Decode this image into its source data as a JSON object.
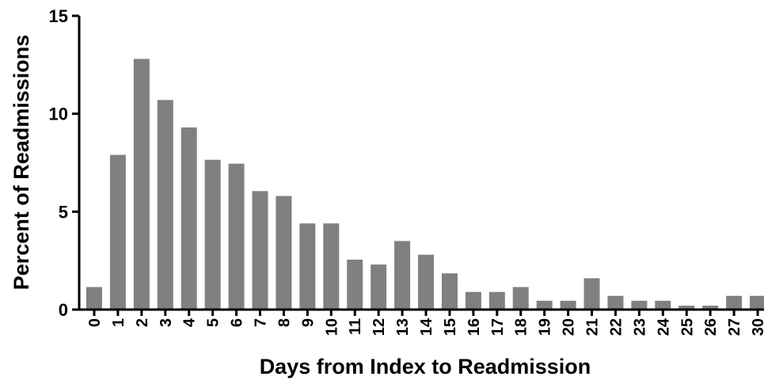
{
  "chart_data": {
    "type": "bar",
    "title": "",
    "xlabel": "Days from Index to Readmission",
    "ylabel": "Percent of Readmissions",
    "ylim": [
      0,
      15
    ],
    "yticks": [
      "0",
      "5",
      "10",
      "15"
    ],
    "grid": false,
    "legend": "none",
    "bar_color": "#808080",
    "categories": [
      "0",
      "1",
      "2",
      "3",
      "4",
      "5",
      "6",
      "7",
      "8",
      "9",
      "10",
      "11",
      "12",
      "13",
      "14",
      "15",
      "16",
      "17",
      "18",
      "19",
      "20",
      "21",
      "22",
      "23",
      "24",
      "25",
      "26",
      "27",
      "30"
    ],
    "values": [
      1.15,
      7.9,
      12.8,
      10.7,
      9.3,
      7.65,
      7.45,
      6.05,
      5.8,
      4.4,
      4.4,
      2.55,
      2.3,
      3.5,
      2.8,
      1.85,
      0.9,
      0.9,
      1.15,
      0.45,
      0.45,
      1.6,
      0.7,
      0.45,
      0.45,
      0.2,
      0.2,
      0.7,
      0.7
    ]
  }
}
